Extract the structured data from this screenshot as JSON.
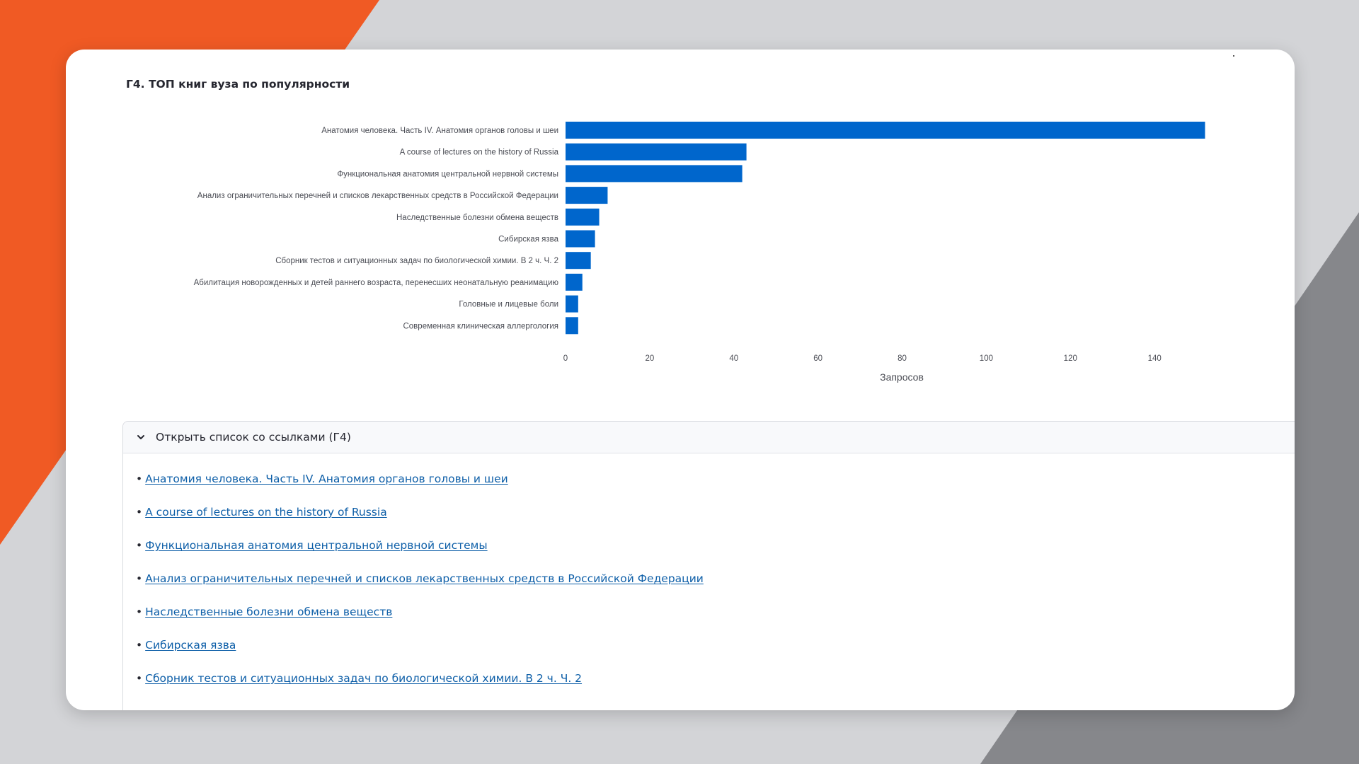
{
  "background": {
    "orange": "#f05a24",
    "light_gray": "#d3d4d7",
    "dark_gray": "#86878b"
  },
  "card": {
    "title": "Г4. ТОП книг вуза по популярности"
  },
  "chart_data": {
    "type": "bar",
    "orientation": "horizontal",
    "title": "",
    "xlabel": "Запросов",
    "ylabel": "",
    "xlim": [
      0,
      150
    ],
    "xticks": [
      0,
      20,
      40,
      60,
      80,
      100,
      120,
      140
    ],
    "grid": false,
    "bar_color": "#0066cc",
    "categories": [
      "Анатомия человека. Часть IV. Анатомия органов головы и шеи",
      "A course of lectures on the history of Russia",
      "Функциональная анатомия центральной нервной системы",
      "Анализ ограничительных перечней и списков лекарственных средств в Российской Федерации",
      "Наследственные болезни обмена веществ",
      "Сибирская язва",
      "Сборник тестов и ситуационных задач по биологической химии. В 2 ч. Ч. 2",
      "Абилитация новорожденных и детей раннего возраста, перенесших неонатальную реанимацию",
      "Головные и лицевые боли",
      "Современная клиническая аллергология"
    ],
    "values": [
      152,
      43,
      42,
      10,
      8,
      7,
      6,
      4,
      3,
      3
    ]
  },
  "expander": {
    "label": "Открыть список со ссылками (Г4)",
    "bullet": "•",
    "links": [
      "Анатомия человека. Часть IV. Анатомия органов головы и шеи",
      "A course of lectures on the history of Russia",
      "Функциональная анатомия центральной нервной системы",
      "Анализ ограничительных перечней и списков лекарственных средств в Российской Федерации",
      "Наследственные болезни обмена веществ",
      "Сибирская язва",
      "Сборник тестов и ситуационных задач по биологической химии. В 2 ч. Ч. 2"
    ]
  }
}
